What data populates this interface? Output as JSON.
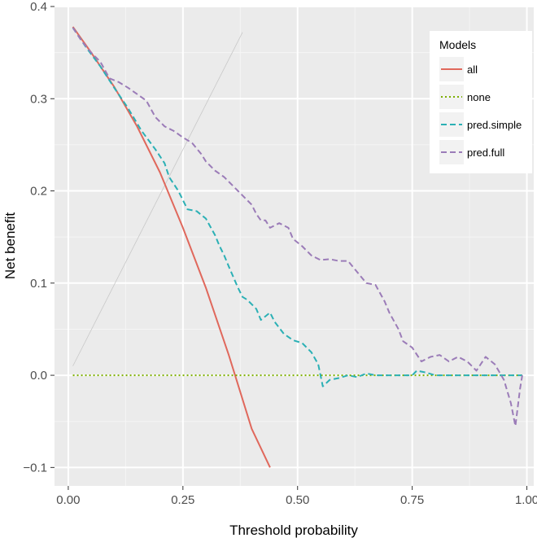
{
  "chart_data": {
    "type": "line",
    "title": "",
    "xlabel": "Threshold probability",
    "ylabel": "Net benefit",
    "xlim": [
      -0.03,
      1.015
    ],
    "ylim": [
      -0.12,
      0.4
    ],
    "x_ticks": [
      0.0,
      0.25,
      0.5,
      0.75,
      1.0
    ],
    "x_tick_labels": [
      "0.00",
      "0.25",
      "0.50",
      "0.75",
      "1.00"
    ],
    "y_ticks": [
      -0.1,
      0.0,
      0.1,
      0.2,
      0.3,
      0.4
    ],
    "y_tick_labels": [
      "−0.1",
      "0.0",
      "0.1",
      "0.2",
      "0.3",
      "0.4"
    ],
    "grid": true,
    "legend": {
      "title": "Models",
      "position": "top-right",
      "entries": [
        "all",
        "none",
        "pred.simple",
        "pred.full"
      ]
    },
    "series": [
      {
        "name": "all",
        "color": "#e0685c",
        "dash": "solid",
        "points": [
          [
            0.01,
            0.378
          ],
          [
            0.05,
            0.35
          ],
          [
            0.1,
            0.313
          ],
          [
            0.15,
            0.27
          ],
          [
            0.2,
            0.22
          ],
          [
            0.25,
            0.16
          ],
          [
            0.3,
            0.095
          ],
          [
            0.35,
            0.022
          ],
          [
            0.4,
            -0.058
          ],
          [
            0.44,
            -0.1
          ]
        ]
      },
      {
        "name": "none",
        "color": "#7cae00",
        "dash": "dotted",
        "points": [
          [
            0.01,
            0.0
          ],
          [
            0.99,
            0.0
          ]
        ]
      },
      {
        "name": "pred.simple",
        "color": "#2bb0b5",
        "dash": "dashed",
        "points": [
          [
            0.01,
            0.377
          ],
          [
            0.04,
            0.355
          ],
          [
            0.07,
            0.335
          ],
          [
            0.1,
            0.312
          ],
          [
            0.13,
            0.29
          ],
          [
            0.16,
            0.265
          ],
          [
            0.19,
            0.245
          ],
          [
            0.21,
            0.23
          ],
          [
            0.22,
            0.215
          ],
          [
            0.24,
            0.2
          ],
          [
            0.26,
            0.18
          ],
          [
            0.28,
            0.178
          ],
          [
            0.3,
            0.17
          ],
          [
            0.32,
            0.152
          ],
          [
            0.33,
            0.14
          ],
          [
            0.34,
            0.13
          ],
          [
            0.35,
            0.118
          ],
          [
            0.37,
            0.095
          ],
          [
            0.38,
            0.085
          ],
          [
            0.39,
            0.082
          ],
          [
            0.41,
            0.072
          ],
          [
            0.42,
            0.06
          ],
          [
            0.44,
            0.068
          ],
          [
            0.45,
            0.058
          ],
          [
            0.47,
            0.045
          ],
          [
            0.49,
            0.038
          ],
          [
            0.51,
            0.035
          ],
          [
            0.53,
            0.025
          ],
          [
            0.545,
            0.012
          ],
          [
            0.555,
            -0.012
          ],
          [
            0.57,
            -0.005
          ],
          [
            0.59,
            -0.003
          ],
          [
            0.61,
            0.0
          ],
          [
            0.63,
            -0.002
          ],
          [
            0.65,
            0.002
          ],
          [
            0.67,
            0.0
          ],
          [
            0.7,
            0.0
          ],
          [
            0.73,
            0.0
          ],
          [
            0.75,
            0.0
          ],
          [
            0.76,
            0.005
          ],
          [
            0.78,
            0.003
          ],
          [
            0.8,
            0.0
          ],
          [
            0.99,
            0.0
          ]
        ]
      },
      {
        "name": "pred.full",
        "color": "#9b7cb8",
        "dash": "dashed",
        "points": [
          [
            0.01,
            0.377
          ],
          [
            0.03,
            0.362
          ],
          [
            0.05,
            0.35
          ],
          [
            0.07,
            0.34
          ],
          [
            0.09,
            0.322
          ],
          [
            0.11,
            0.318
          ],
          [
            0.13,
            0.312
          ],
          [
            0.15,
            0.305
          ],
          [
            0.17,
            0.298
          ],
          [
            0.19,
            0.28
          ],
          [
            0.21,
            0.27
          ],
          [
            0.23,
            0.265
          ],
          [
            0.25,
            0.258
          ],
          [
            0.27,
            0.252
          ],
          [
            0.29,
            0.24
          ],
          [
            0.3,
            0.232
          ],
          [
            0.32,
            0.222
          ],
          [
            0.34,
            0.215
          ],
          [
            0.36,
            0.205
          ],
          [
            0.38,
            0.195
          ],
          [
            0.4,
            0.185
          ],
          [
            0.41,
            0.175
          ],
          [
            0.42,
            0.168
          ],
          [
            0.43,
            0.168
          ],
          [
            0.44,
            0.16
          ],
          [
            0.46,
            0.165
          ],
          [
            0.48,
            0.16
          ],
          [
            0.49,
            0.148
          ],
          [
            0.51,
            0.14
          ],
          [
            0.53,
            0.13
          ],
          [
            0.55,
            0.125
          ],
          [
            0.57,
            0.126
          ],
          [
            0.59,
            0.124
          ],
          [
            0.61,
            0.124
          ],
          [
            0.63,
            0.112
          ],
          [
            0.65,
            0.1
          ],
          [
            0.67,
            0.098
          ],
          [
            0.69,
            0.08
          ],
          [
            0.7,
            0.068
          ],
          [
            0.72,
            0.05
          ],
          [
            0.73,
            0.037
          ],
          [
            0.75,
            0.03
          ],
          [
            0.77,
            0.015
          ],
          [
            0.79,
            0.02
          ],
          [
            0.81,
            0.022
          ],
          [
            0.83,
            0.015
          ],
          [
            0.85,
            0.02
          ],
          [
            0.87,
            0.015
          ],
          [
            0.89,
            0.005
          ],
          [
            0.91,
            0.02
          ],
          [
            0.93,
            0.012
          ],
          [
            0.95,
            -0.005
          ],
          [
            0.965,
            -0.03
          ],
          [
            0.975,
            -0.055
          ],
          [
            0.985,
            -0.015
          ],
          [
            0.99,
            0.0
          ]
        ]
      },
      {
        "name": "",
        "color": "#c8c8c8",
        "dash": "solid",
        "points": [
          [
            0.01,
            0.01
          ],
          [
            0.38,
            0.372
          ]
        ]
      }
    ]
  }
}
